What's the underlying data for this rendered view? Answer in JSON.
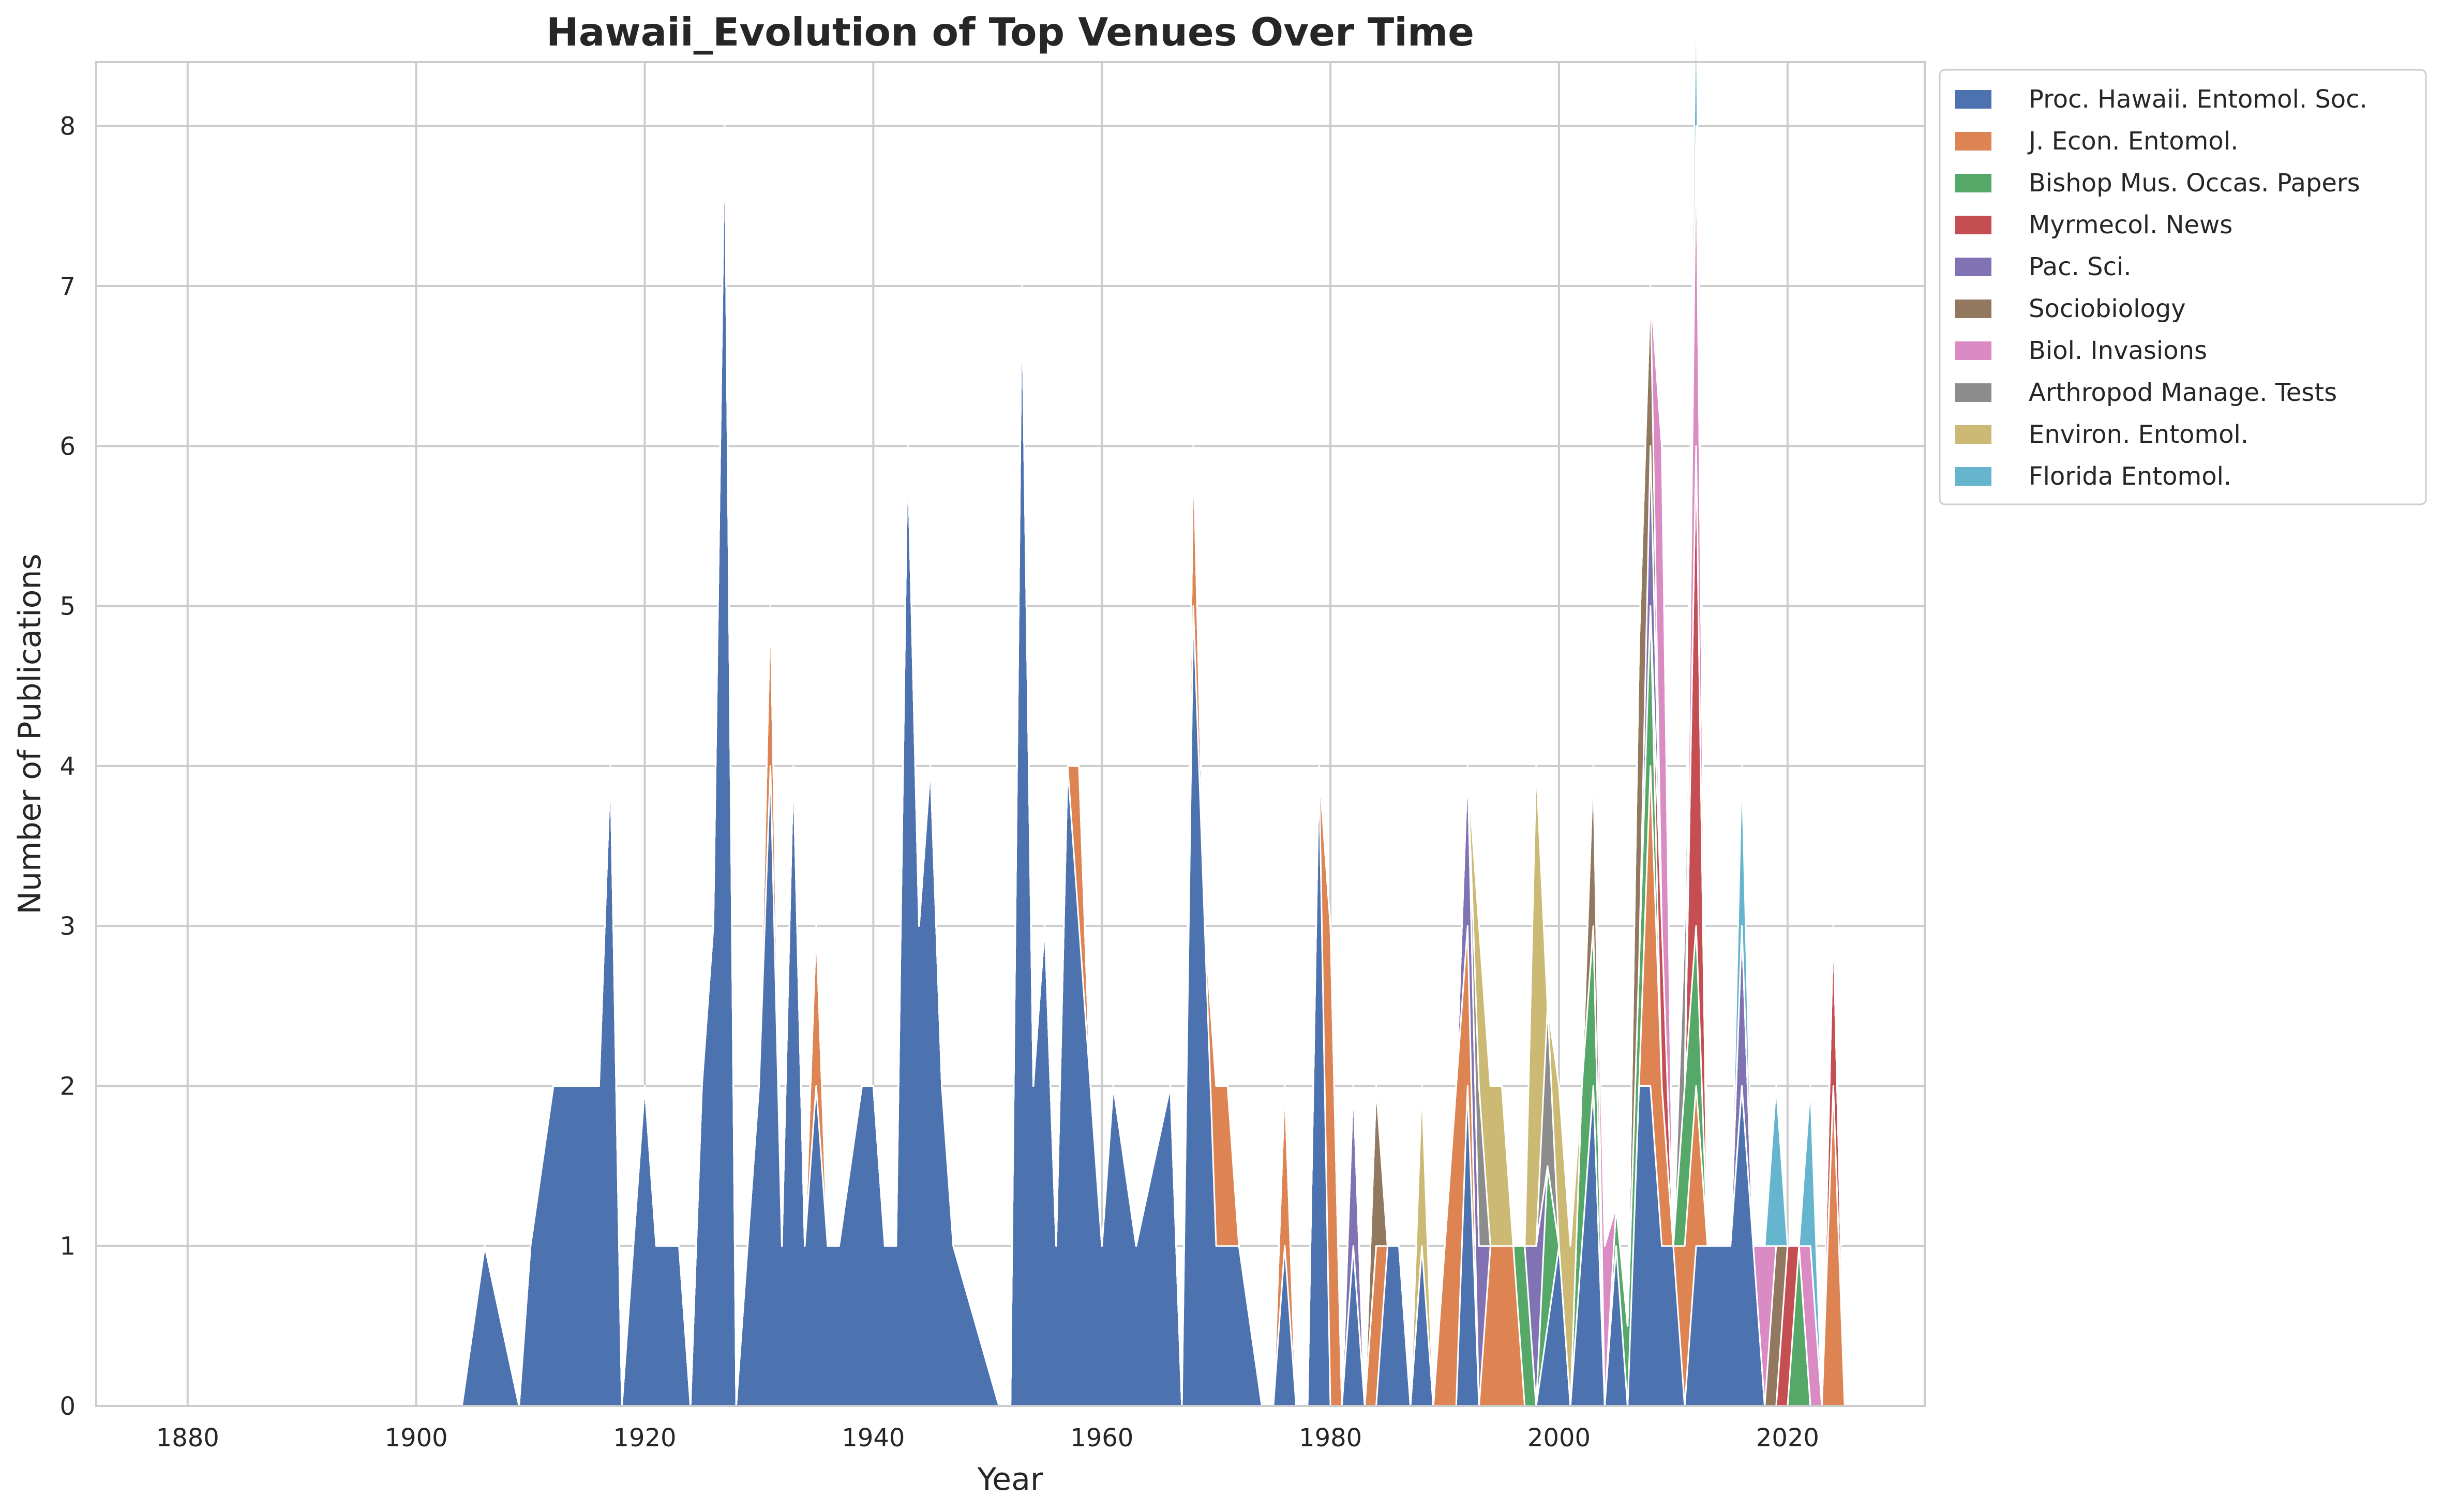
{
  "colors": [
    "#4c72b0",
    "#dd8452",
    "#55a868",
    "#c44e52",
    "#8172b3",
    "#937860",
    "#da8bc3",
    "#8c8c8c",
    "#ccb974",
    "#64b5cd"
  ],
  "chart_data": {
    "type": "area",
    "stacked": true,
    "title": "Hawaii_Evolution of Top Venues Over Time",
    "xlabel": "Year",
    "ylabel": "Number of Publications",
    "xlim": [
      1872,
      2032
    ],
    "ylim": [
      0,
      8.4
    ],
    "xticks": [
      1880,
      1900,
      1920,
      1940,
      1960,
      1980,
      2000,
      2020
    ],
    "yticks": [
      0,
      1,
      2,
      3,
      4,
      5,
      6,
      7,
      8
    ],
    "grid": true,
    "legend_position": "outside-top-right",
    "series": [
      {
        "name": "Proc. Hawaii. Entomol. Soc.",
        "points": [
          [
            1904,
            0
          ],
          [
            1906,
            1
          ],
          [
            1909,
            0
          ],
          [
            1910,
            1
          ],
          [
            1912,
            2
          ],
          [
            1916,
            2
          ],
          [
            1917,
            4
          ],
          [
            1918,
            0
          ],
          [
            1920,
            2
          ],
          [
            1921,
            1
          ],
          [
            1923,
            1
          ],
          [
            1924,
            0
          ],
          [
            1925,
            2
          ],
          [
            1926,
            3
          ],
          [
            1927,
            8
          ],
          [
            1928,
            0
          ],
          [
            1929,
            1
          ],
          [
            1930,
            2
          ],
          [
            1931,
            4
          ],
          [
            1932,
            1
          ],
          [
            1933,
            4
          ],
          [
            1934,
            1
          ],
          [
            1935,
            2
          ],
          [
            1936,
            1
          ],
          [
            1937,
            1
          ],
          [
            1939,
            2
          ],
          [
            1940,
            2
          ],
          [
            1941,
            1
          ],
          [
            1942,
            1
          ],
          [
            1943,
            6
          ],
          [
            1944,
            3
          ],
          [
            1945,
            4
          ],
          [
            1946,
            2
          ],
          [
            1947,
            1
          ],
          [
            1951,
            0
          ],
          [
            1952,
            0
          ],
          [
            1953,
            7
          ],
          [
            1954,
            2
          ],
          [
            1955,
            3
          ],
          [
            1956,
            1
          ],
          [
            1957,
            4
          ],
          [
            1958,
            3
          ],
          [
            1959,
            2
          ],
          [
            1960,
            1
          ],
          [
            1961,
            2
          ],
          [
            1963,
            1
          ],
          [
            1966,
            2
          ],
          [
            1967,
            0
          ],
          [
            1968,
            5
          ],
          [
            1969,
            3
          ],
          [
            1970,
            1
          ],
          [
            1972,
            1
          ],
          [
            1974,
            0
          ],
          [
            1975,
            0
          ],
          [
            1976,
            1
          ],
          [
            1977,
            0
          ],
          [
            1978,
            0
          ],
          [
            1979,
            4
          ],
          [
            1980,
            0
          ],
          [
            1981,
            0
          ],
          [
            1982,
            1
          ],
          [
            1983,
            0
          ],
          [
            1984,
            0
          ],
          [
            1985,
            1
          ],
          [
            1986,
            1
          ],
          [
            1987,
            0
          ],
          [
            1988,
            1
          ],
          [
            1989,
            0
          ],
          [
            1991,
            0
          ],
          [
            1992,
            2
          ],
          [
            1993,
            0
          ],
          [
            1998,
            0
          ],
          [
            2000,
            1
          ],
          [
            2001,
            0
          ],
          [
            2003,
            2
          ],
          [
            2004,
            0
          ],
          [
            2005,
            1
          ],
          [
            2006,
            0
          ],
          [
            2007,
            2
          ],
          [
            2008,
            2
          ],
          [
            2009,
            1
          ],
          [
            2010,
            1
          ],
          [
            2011,
            0
          ],
          [
            2012,
            1
          ],
          [
            2015,
            1
          ],
          [
            2016,
            2
          ],
          [
            2017,
            1
          ],
          [
            2018,
            0
          ],
          [
            2024,
            0
          ]
        ]
      },
      {
        "name": "J. Econ. Entomol.",
        "points": [
          [
            1904,
            0
          ],
          [
            1929,
            0
          ],
          [
            1930,
            0
          ],
          [
            1931,
            1
          ],
          [
            1932,
            0
          ],
          [
            1934,
            0
          ],
          [
            1935,
            1
          ],
          [
            1936,
            0
          ],
          [
            1957,
            0
          ],
          [
            1958,
            1
          ],
          [
            1959,
            0
          ],
          [
            1961,
            0
          ],
          [
            1967,
            0
          ],
          [
            1968,
            1
          ],
          [
            1969,
            0
          ],
          [
            1970,
            1
          ],
          [
            1971,
            1
          ],
          [
            1972,
            0
          ],
          [
            1975,
            0
          ],
          [
            1976,
            1
          ],
          [
            1977,
            0
          ],
          [
            1979,
            0
          ],
          [
            1980,
            3
          ],
          [
            1981,
            0
          ],
          [
            1983,
            0
          ],
          [
            1984,
            1
          ],
          [
            1985,
            0
          ],
          [
            1989,
            0
          ],
          [
            1990,
            1
          ],
          [
            1991,
            2
          ],
          [
            1992,
            1
          ],
          [
            1993,
            0
          ],
          [
            1994,
            1
          ],
          [
            1996,
            1
          ],
          [
            1997,
            0
          ],
          [
            2007,
            0
          ],
          [
            2008,
            2
          ],
          [
            2009,
            1
          ],
          [
            2010,
            0
          ],
          [
            2011,
            1
          ],
          [
            2012,
            1
          ],
          [
            2013,
            0
          ],
          [
            2023,
            0
          ],
          [
            2024,
            2
          ],
          [
            2025,
            0
          ]
        ]
      },
      {
        "name": "Bishop Mus. Occas. Papers",
        "points": [
          [
            1904,
            0
          ],
          [
            1996,
            0
          ],
          [
            1997,
            1
          ],
          [
            1998,
            0
          ],
          [
            1999,
            1
          ],
          [
            2000,
            0
          ],
          [
            2001,
            0
          ],
          [
            2002,
            1
          ],
          [
            2003,
            1
          ],
          [
            2004,
            0
          ],
          [
            2008,
            1
          ],
          [
            2009,
            0
          ],
          [
            2010,
            0
          ],
          [
            2011,
            1
          ],
          [
            2012,
            1
          ],
          [
            2013,
            0
          ],
          [
            2019,
            0
          ],
          [
            2020,
            0
          ],
          [
            2021,
            1
          ],
          [
            2022,
            0
          ],
          [
            2024,
            0
          ]
        ]
      },
      {
        "name": "Myrmecol. News",
        "points": [
          [
            1904,
            0
          ],
          [
            2007,
            0
          ],
          [
            2008,
            0
          ],
          [
            2009,
            1
          ],
          [
            2010,
            0
          ],
          [
            2011,
            0
          ],
          [
            2012,
            3
          ],
          [
            2013,
            0
          ],
          [
            2019,
            0
          ],
          [
            2020,
            1
          ],
          [
            2021,
            0
          ],
          [
            2023,
            0
          ],
          [
            2024,
            1
          ],
          [
            2025,
            0
          ]
        ]
      },
      {
        "name": "Pac. Sci.",
        "points": [
          [
            1904,
            0
          ],
          [
            1981,
            0
          ],
          [
            1982,
            1
          ],
          [
            1983,
            0
          ],
          [
            1991,
            0
          ],
          [
            1992,
            1
          ],
          [
            1993,
            1
          ],
          [
            1994,
            0
          ],
          [
            1997,
            0
          ],
          [
            1998,
            1
          ],
          [
            1999,
            0
          ],
          [
            2007,
            0
          ],
          [
            2008,
            1
          ],
          [
            2009,
            0
          ],
          [
            2015,
            0
          ],
          [
            2016,
            1
          ],
          [
            2017,
            0
          ],
          [
            2024,
            0
          ]
        ]
      },
      {
        "name": "Sociobiology",
        "points": [
          [
            1904,
            0
          ],
          [
            1983,
            0
          ],
          [
            1984,
            1
          ],
          [
            1985,
            0
          ],
          [
            2002,
            0
          ],
          [
            2003,
            1
          ],
          [
            2004,
            0
          ],
          [
            2006,
            0
          ],
          [
            2007,
            2
          ],
          [
            2008,
            1
          ],
          [
            2009,
            0
          ],
          [
            2018,
            0
          ],
          [
            2019,
            1
          ],
          [
            2020,
            0
          ],
          [
            2024,
            0
          ]
        ]
      },
      {
        "name": "Biol. Invasions",
        "points": [
          [
            1904,
            0
          ],
          [
            2003,
            0
          ],
          [
            2004,
            1
          ],
          [
            2005,
            0
          ],
          [
            2007,
            0
          ],
          [
            2008,
            0
          ],
          [
            2009,
            3
          ],
          [
            2010,
            0
          ],
          [
            2011,
            0
          ],
          [
            2012,
            2
          ],
          [
            2013,
            0
          ],
          [
            2017,
            0
          ],
          [
            2018,
            1
          ],
          [
            2019,
            0
          ],
          [
            2021,
            0
          ],
          [
            2022,
            1
          ],
          [
            2023,
            0
          ],
          [
            2024,
            0
          ]
        ]
      },
      {
        "name": "Arthropod Manage. Tests",
        "points": [
          [
            1904,
            0
          ],
          [
            1992,
            0
          ],
          [
            1993,
            1
          ],
          [
            1994,
            0
          ],
          [
            1998,
            0
          ],
          [
            1999,
            1
          ],
          [
            2000,
            0
          ],
          [
            2010,
            0
          ],
          [
            2011,
            1
          ],
          [
            2012,
            0
          ],
          [
            2024,
            0
          ]
        ]
      },
      {
        "name": "Environ. Entomol.",
        "points": [
          [
            1904,
            0
          ],
          [
            1987,
            0
          ],
          [
            1988,
            1
          ],
          [
            1989,
            0
          ],
          [
            1992,
            0
          ],
          [
            1993,
            1
          ],
          [
            1994,
            1
          ],
          [
            1995,
            1
          ],
          [
            1996,
            0
          ],
          [
            1997,
            0
          ],
          [
            1998,
            3
          ],
          [
            1999,
            0
          ],
          [
            2000,
            1
          ],
          [
            2001,
            1
          ],
          [
            2002,
            0
          ],
          [
            2024,
            0
          ]
        ]
      },
      {
        "name": "Florida Entomol.",
        "points": [
          [
            1904,
            0
          ],
          [
            2010,
            0
          ],
          [
            2011,
            0
          ],
          [
            2012,
            1
          ],
          [
            2013,
            0
          ],
          [
            2015,
            0
          ],
          [
            2016,
            1
          ],
          [
            2017,
            0
          ],
          [
            2018,
            0
          ],
          [
            2019,
            1
          ],
          [
            2020,
            0
          ],
          [
            2021,
            0
          ],
          [
            2022,
            1
          ],
          [
            2023,
            0
          ],
          [
            2024,
            0
          ]
        ]
      }
    ]
  }
}
